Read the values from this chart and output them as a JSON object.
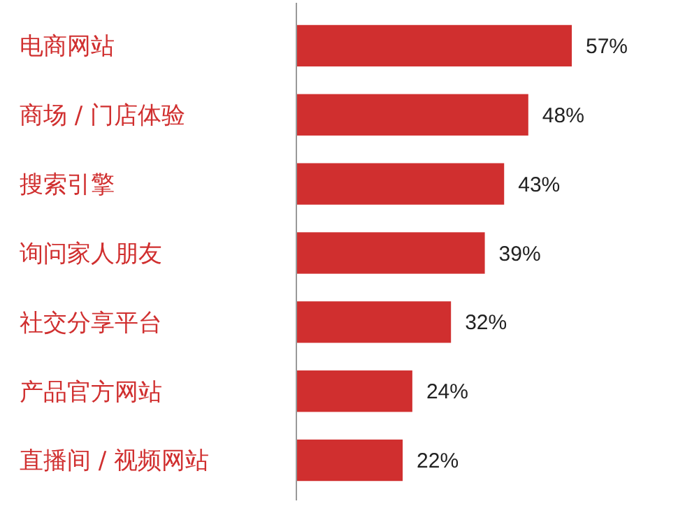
{
  "chart_data": {
    "type": "bar",
    "orientation": "horizontal",
    "categories": [
      "电商网站",
      "商场 / 门店体验",
      "搜索引擎",
      "询问家人朋友",
      "社交分享平台",
      "产品官方网站",
      "直播间 / 视频网站"
    ],
    "values": [
      57,
      48,
      43,
      39,
      32,
      24,
      22
    ],
    "value_labels": [
      "57%",
      "48%",
      "43%",
      "39%",
      "32%",
      "24%",
      "22%"
    ],
    "color": "#d02f2f"
  }
}
